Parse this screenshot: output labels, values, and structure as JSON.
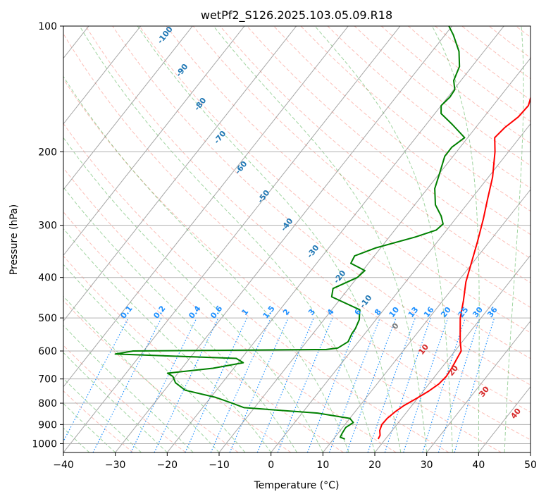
{
  "chart_data": {
    "type": "line",
    "title": "wetPf2_S126.2025.103.05.09.R18",
    "xlabel": "Temperature (°C)",
    "ylabel": "Pressure (hPa)",
    "xlim": [
      -40,
      50
    ],
    "ylim": [
      1050,
      100
    ],
    "y_scale": "log",
    "x_ticks": [
      "−40",
      "−30",
      "−20",
      "−10",
      "0",
      "10",
      "20",
      "30",
      "40",
      "50"
    ],
    "y_ticks": [
      "100",
      "200",
      "300",
      "400",
      "500",
      "600",
      "700",
      "800",
      "900",
      "1000"
    ],
    "grid": true,
    "colors": {
      "temperature": "#ff0000",
      "dewpoint": "#008000",
      "isotherm": "#888888",
      "dry_adiabat": "#fa8072",
      "moist_adiabat": "#2ca02c",
      "mixing_ratio": "#1e90ff",
      "skewed_isotherm_labels": "#1f77b4",
      "moist_labels": "#d62728"
    },
    "series": [
      {
        "key": "temperature",
        "points": [
          [
            18.6,
            975
          ],
          [
            18.4,
            955
          ],
          [
            17.6,
            930
          ],
          [
            17.1,
            900
          ],
          [
            17.2,
            870
          ],
          [
            17.7,
            840
          ],
          [
            18.5,
            810
          ],
          [
            19.8,
            780
          ],
          [
            21.0,
            750
          ],
          [
            21.9,
            720
          ],
          [
            22.2,
            690
          ],
          [
            22.0,
            660
          ],
          [
            21.6,
            630
          ],
          [
            21.2,
            600
          ],
          [
            19.6,
            570
          ],
          [
            18.1,
            540
          ],
          [
            16.0,
            500
          ],
          [
            14.0,
            455
          ],
          [
            11.6,
            410
          ],
          [
            9.8,
            370
          ],
          [
            7.8,
            330
          ],
          [
            5.4,
            290
          ],
          [
            3.2,
            260
          ],
          [
            0.8,
            230
          ],
          [
            -2.6,
            200
          ],
          [
            -4.8,
            185
          ],
          [
            -4.4,
            175
          ],
          [
            -3.4,
            165
          ],
          [
            -3.2,
            155
          ],
          [
            -4.0,
            148
          ],
          [
            -4.6,
            140
          ],
          [
            -4.8,
            130
          ],
          [
            -4.8,
            125
          ],
          [
            -5.0,
            120
          ],
          [
            -5.3,
            112
          ],
          [
            -6.0,
            100
          ]
        ]
      },
      {
        "key": "dewpoint",
        "points": [
          [
            12.2,
            975
          ],
          [
            11.0,
            965
          ],
          [
            10.8,
            945
          ],
          [
            10.6,
            915
          ],
          [
            11.3,
            890
          ],
          [
            10.0,
            870
          ],
          [
            3.0,
            845
          ],
          [
            -12.0,
            820
          ],
          [
            -15.0,
            800
          ],
          [
            -19.0,
            775
          ],
          [
            -26.0,
            745
          ],
          [
            -29.0,
            715
          ],
          [
            -30.5,
            690
          ],
          [
            -32.0,
            678
          ],
          [
            -24.0,
            660
          ],
          [
            -19.0,
            640
          ],
          [
            -21.0,
            625
          ],
          [
            -45.0,
            610
          ],
          [
            -42.0,
            600
          ],
          [
            -5.0,
            595
          ],
          [
            -3.0,
            590
          ],
          [
            -2.0,
            570
          ],
          [
            -2.5,
            545
          ],
          [
            -2.6,
            530
          ],
          [
            -3.2,
            505
          ],
          [
            -4.6,
            478
          ],
          [
            -12.0,
            445
          ],
          [
            -13.0,
            425
          ],
          [
            -10.0,
            400
          ],
          [
            -9.6,
            385
          ],
          [
            -13.4,
            370
          ],
          [
            -13.8,
            355
          ],
          [
            -11.0,
            340
          ],
          [
            -5.0,
            320
          ],
          [
            -2.0,
            308
          ],
          [
            -1.6,
            298
          ],
          [
            -3.2,
            285
          ],
          [
            -6.0,
            268
          ],
          [
            -8.6,
            245
          ],
          [
            -10.0,
            225
          ],
          [
            -11.6,
            205
          ],
          [
            -11.6,
            195
          ],
          [
            -10.6,
            185
          ],
          [
            -15.0,
            172
          ],
          [
            -18.8,
            162
          ],
          [
            -20.0,
            155
          ],
          [
            -19.6,
            148
          ],
          [
            -19.8,
            142
          ],
          [
            -21.4,
            135
          ],
          [
            -22.4,
            125
          ],
          [
            -24.8,
            115
          ],
          [
            -28.4,
            105
          ],
          [
            -30.6,
            100
          ]
        ]
      }
    ],
    "skewed_isotherm_labels": [
      "-100",
      "-90",
      "-80",
      "-70",
      "-60",
      "-50",
      "-40",
      "-30",
      "-20",
      "-10"
    ],
    "zero_label": "0",
    "moist_labels": [
      "10",
      "20",
      "30",
      "40"
    ],
    "mixing_ratio_labels": [
      "0.1",
      "0.2",
      "0.4",
      "0.6",
      "1",
      "1.5",
      "2",
      "3",
      "4",
      "6",
      "8",
      "10",
      "13",
      "16",
      "20",
      "25",
      "30",
      "36"
    ]
  }
}
